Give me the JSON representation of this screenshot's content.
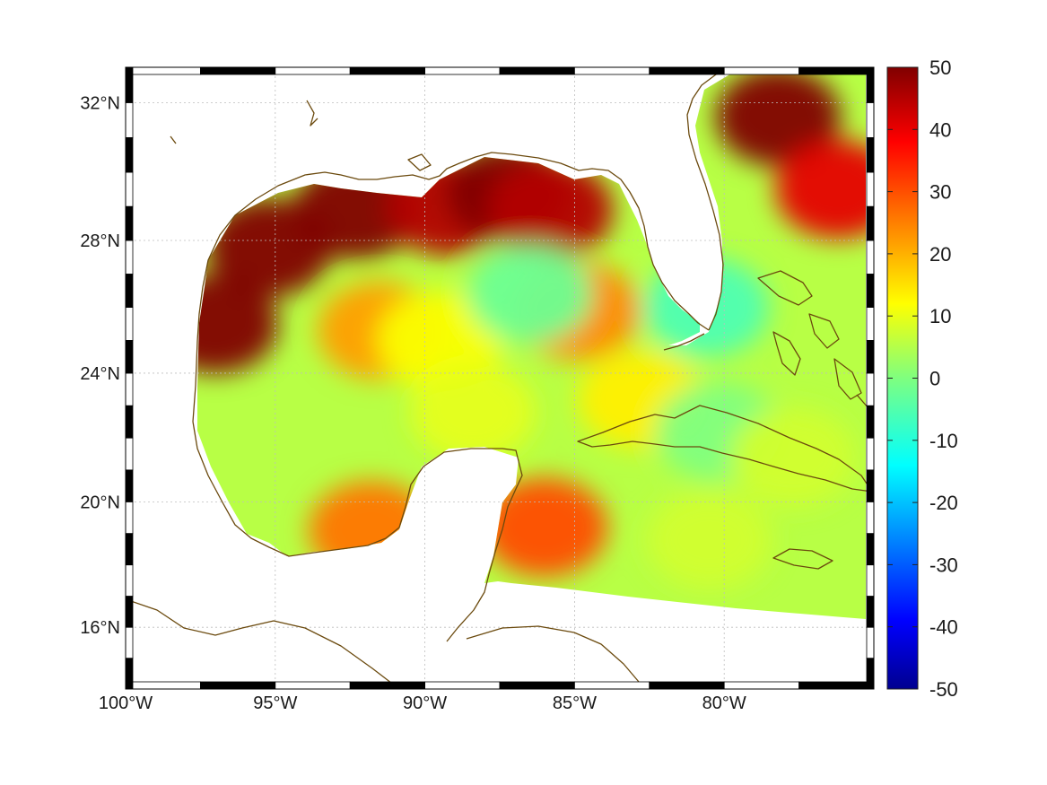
{
  "map": {
    "projection": "mercator",
    "lon_range": [
      -100,
      -75
    ],
    "lat_range": [
      14,
      33
    ],
    "x_ticks": [
      {
        "value": -100,
        "label": "100°W"
      },
      {
        "value": -95,
        "label": "95°W"
      },
      {
        "value": -90,
        "label": "90°W"
      },
      {
        "value": -85,
        "label": "85°W"
      },
      {
        "value": -80,
        "label": "80°W"
      }
    ],
    "y_ticks": [
      {
        "value": 32,
        "label": "32°N"
      },
      {
        "value": 28,
        "label": "28°N"
      },
      {
        "value": 24,
        "label": "24°N"
      },
      {
        "value": 20,
        "label": "20°N"
      },
      {
        "value": 16,
        "label": "16°N"
      }
    ],
    "grid": true,
    "coast_color": "#6b4a0e",
    "colormap": "jet"
  },
  "colorbar": {
    "min": -50,
    "max": 50,
    "location": "right",
    "ticks": [
      {
        "value": 50,
        "label": "50"
      },
      {
        "value": 40,
        "label": "40"
      },
      {
        "value": 30,
        "label": "30"
      },
      {
        "value": 20,
        "label": "20"
      },
      {
        "value": 10,
        "label": "10"
      },
      {
        "value": 0,
        "label": "0"
      },
      {
        "value": -10,
        "label": "-10"
      },
      {
        "value": -20,
        "label": "-20"
      },
      {
        "value": -30,
        "label": "-30"
      },
      {
        "value": -40,
        "label": "-40"
      },
      {
        "value": -50,
        "label": "-50"
      }
    ]
  },
  "field_features": [
    {
      "lon": -97.0,
      "lat": 25.5,
      "value": 55
    },
    {
      "lon": -95.2,
      "lat": 27.8,
      "value": 50
    },
    {
      "lon": -92.3,
      "lat": 28.9,
      "value": 52
    },
    {
      "lon": -89.2,
      "lat": 29.0,
      "value": 45
    },
    {
      "lon": -87.2,
      "lat": 29.4,
      "value": 52
    },
    {
      "lon": -85.8,
      "lat": 28.9,
      "value": 45
    },
    {
      "lon": -78.2,
      "lat": 31.6,
      "value": 58
    },
    {
      "lon": -76.2,
      "lat": 29.5,
      "value": 40
    },
    {
      "lon": -84.9,
      "lat": 25.9,
      "value": 24
    },
    {
      "lon": -91.5,
      "lat": 25.3,
      "value": 22
    },
    {
      "lon": -89.5,
      "lat": 25.0,
      "value": 12
    },
    {
      "lon": -91.8,
      "lat": 19.1,
      "value": 26
    },
    {
      "lon": -82.8,
      "lat": 23.2,
      "value": 14
    },
    {
      "lon": -80.6,
      "lat": 26.0,
      "value": -5
    },
    {
      "lon": -86.5,
      "lat": 26.4,
      "value": -2
    },
    {
      "lon": -88.4,
      "lat": 22.8,
      "value": 10
    },
    {
      "lon": -80.2,
      "lat": 22.2,
      "value": 0
    },
    {
      "lon": -77.7,
      "lat": 21.4,
      "value": 8
    },
    {
      "lon": -80.5,
      "lat": 18.8,
      "value": 8
    },
    {
      "lon": -86.0,
      "lat": 19.2,
      "value": 30
    }
  ]
}
